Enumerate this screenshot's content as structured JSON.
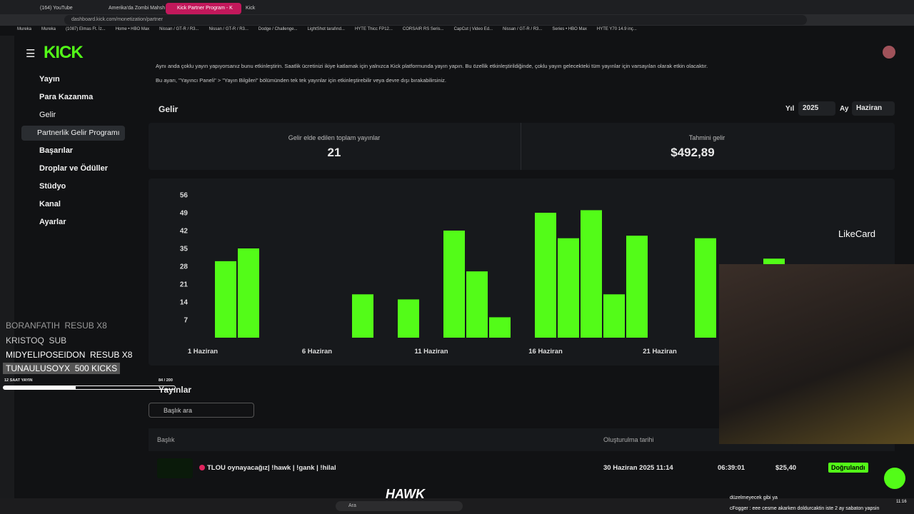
{
  "browser": {
    "tabs": [
      "(164) YouTube",
      "Amerika'da Zombi Mahsh",
      "Kick Partner Program - K",
      "Kick"
    ],
    "url": "dashboard.kick.com/monetization/partner",
    "bookmarks": [
      "Mureka",
      "Mureka",
      "(1087) Elmas Ft. İz...",
      "Home • HBO Max",
      "Nissan / GT-R / R3...",
      "Nissan / GT-R / R3...",
      "Dodge / Challenge...",
      "LightShot tarafınd...",
      "HYTE Thicc FP12...",
      "CORSAIR RS Seris...",
      "CapCut | Video Ed...",
      "Nissan / GT-R / R3...",
      "Series • HBO Max",
      "HYTE Y70 14.9 inç..."
    ]
  },
  "sidebar": {
    "logo": "KICK",
    "items": [
      "Yayın",
      "Para Kazanma",
      "Gelir",
      "Partnerlik Gelir Programı",
      "Başarılar",
      "Droplar ve Ödüller",
      "Stüdyo",
      "Kanal",
      "Ayarlar"
    ]
  },
  "notice": [
    "Aynı anda çoklu yayın yapıyorsanız bunu etkinleştirin. Saatlik ücretinizi ikiye katlamak için yalnızca Kick platformunda yayın yapın. Bu özellik etkinleştirildiğinde, çoklu yayın gelecekteki tüm yayınlar için varsayılan olarak etkin olacaktır.",
    "Bu ayarı, \"Yayıncı Paneli\" > \"Yayın Bilgileri\" bölümünden tek tek yayınlar için etkinleştirebilir veya devre dışı bırakabilirsiniz."
  ],
  "revenue": {
    "title": "Gelir",
    "year_label": "Yıl",
    "year": "2025",
    "month_label": "Ay",
    "month": "Haziran",
    "stats": [
      {
        "label": "Gelir elde edilen toplam yayınlar",
        "value": "21"
      },
      {
        "label": "Tahmini gelir",
        "value": "$492,89"
      }
    ]
  },
  "chart_data": {
    "type": "bar",
    "categories": [
      "1 Haziran",
      null,
      null,
      null,
      null,
      "6 Haziran",
      null,
      null,
      null,
      null,
      "11 Haziran",
      null,
      null,
      null,
      null,
      "16 Haziran",
      null,
      null,
      null,
      null,
      "21 Haziran",
      null,
      null,
      null,
      null,
      null
    ],
    "values": [
      null,
      30,
      35,
      null,
      null,
      null,
      null,
      17,
      null,
      15,
      null,
      42,
      26,
      8,
      null,
      49,
      39,
      50,
      17,
      40,
      null,
      null,
      39,
      null,
      null,
      31
    ],
    "color": "#53fc18",
    "ylim": [
      0,
      56
    ],
    "yticks": [
      7,
      14,
      21,
      28,
      35,
      42,
      49,
      56
    ]
  },
  "streams": {
    "title": "Yayınlar",
    "search": "Başlık ara",
    "columns": [
      "Başlık",
      "Oluşturulma tarihi"
    ],
    "rows": [
      [
        "TLOU oynayacağız| !hawk | !gank | !hilal",
        "30 Haziran 2025 11:14",
        "06:39:01",
        "$25,40",
        "Doğrulandı"
      ]
    ]
  },
  "overlay": {
    "alerts": [
      [
        "BORANFATIH",
        "RESUB X8"
      ],
      [
        "KRISTOQ",
        "SUB"
      ],
      [
        "MIDYELIPOSEIDON",
        "RESUB X8"
      ],
      [
        "TUNAULUSOYX",
        "500 KICKS"
      ]
    ],
    "goal_label": "12 SAAT YAYIN",
    "goal_progress": "84 / 200",
    "sponsor": "LikeCard",
    "brand": "HAWK",
    "chat": [
      "düzelmeyecek gibi ya",
      "cFogger : eee cesme akarken doldurcaktin iste 2 ay sabaton yapsin"
    ]
  },
  "taskbar": {
    "search": "Ara",
    "time": "11:16"
  }
}
